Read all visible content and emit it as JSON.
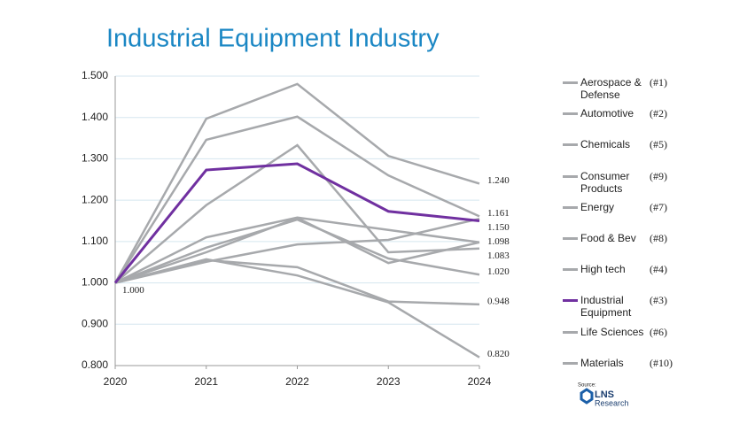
{
  "chart_data": {
    "type": "line",
    "title": "Industrial Equipment Industry",
    "x": [
      2020,
      2021,
      2022,
      2023,
      2024
    ],
    "xlim": [
      2020,
      2024
    ],
    "xticks": [
      2020,
      2021,
      2022,
      2023,
      2024
    ],
    "ylim": [
      0.8,
      1.5
    ],
    "yticks": [
      {
        "value": 0.8,
        "label": "0.800"
      },
      {
        "value": 0.9,
        "label": "0.900"
      },
      {
        "value": 1.0,
        "label": "1.000"
      },
      {
        "value": 1.1,
        "label": "1.100"
      },
      {
        "value": 1.2,
        "label": "1.200"
      },
      {
        "value": 1.3,
        "label": "1.300"
      },
      {
        "value": 1.4,
        "label": "1.400"
      },
      {
        "value": 1.5,
        "label": "1.500"
      }
    ],
    "grid": true,
    "series": [
      {
        "name": "Aerospace & Defense",
        "rank": "(#1)",
        "color": "#a7a9ac",
        "values": [
          1.0,
          1.397,
          1.481,
          1.307,
          1.24
        ],
        "value_labels": [
          null,
          null,
          null,
          null,
          "1.240"
        ]
      },
      {
        "name": "Automotive",
        "rank": "(#2)",
        "color": "#a7a9ac",
        "values": [
          1.0,
          1.346,
          1.402,
          1.26,
          1.161
        ],
        "value_labels": [
          null,
          null,
          null,
          null,
          "1.161"
        ]
      },
      {
        "name": "Chemicals",
        "rank": "(#5)",
        "color": "#a7a9ac",
        "values": [
          1.0,
          1.074,
          1.157,
          1.048,
          1.098
        ],
        "value_labels": [
          null,
          null,
          null,
          null,
          null
        ]
      },
      {
        "name": "Consumer Products",
        "rank": "(#9)",
        "color": "#a7a9ac",
        "values": [
          1.0,
          1.055,
          1.038,
          0.955,
          0.948
        ],
        "value_labels": [
          null,
          null,
          null,
          null,
          "0.948"
        ]
      },
      {
        "name": "Energy",
        "rank": "(#7)",
        "color": "#a7a9ac",
        "values": [
          1.0,
          1.085,
          1.153,
          1.059,
          1.02
        ],
        "value_labels": [
          null,
          null,
          null,
          null,
          "1.020"
        ]
      },
      {
        "name": "Food & Bev",
        "rank": "(#8)",
        "color": "#a7a9ac",
        "values": [
          1.0,
          1.11,
          1.158,
          1.128,
          1.098
        ],
        "value_labels": [
          null,
          null,
          null,
          null,
          "1.098"
        ]
      },
      {
        "name": "High tech",
        "rank": "(#4)",
        "color": "#a7a9ac",
        "values": [
          1.0,
          1.051,
          1.093,
          1.104,
          1.155
        ],
        "value_labels": [
          null,
          null,
          null,
          null,
          null
        ]
      },
      {
        "name": "Industrial Equipment",
        "rank": "(#3)",
        "color": "#7030a0",
        "values": [
          1.0,
          1.273,
          1.288,
          1.173,
          1.15
        ],
        "value_labels": [
          "1.000",
          null,
          null,
          null,
          "1.150"
        ]
      },
      {
        "name": "Life Sciences",
        "rank": "(#6)",
        "color": "#a7a9ac",
        "values": [
          1.0,
          1.188,
          1.333,
          1.074,
          1.083
        ],
        "value_labels": [
          null,
          null,
          null,
          null,
          "1.083"
        ]
      },
      {
        "name": "Materials",
        "rank": "(#10)",
        "color": "#a7a9ac",
        "values": [
          1.0,
          1.057,
          1.018,
          0.953,
          0.82
        ],
        "value_labels": [
          null,
          null,
          null,
          null,
          "0.820"
        ]
      }
    ],
    "source_label": "Source:",
    "logo_top": "LNS",
    "logo_bottom": "Research"
  }
}
